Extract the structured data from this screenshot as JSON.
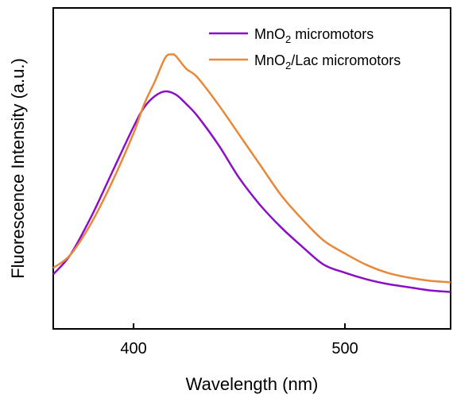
{
  "chart_data": {
    "type": "line",
    "xlabel": "Wavelength (nm)",
    "ylabel": "Fluorescence Intensity (a.u.)",
    "xlim": [
      362,
      550
    ],
    "ylim": [
      0,
      1
    ],
    "x_ticks": [
      400,
      500
    ],
    "y_ticks": [],
    "grid": false,
    "legend_position": "top-right",
    "series": [
      {
        "name": "MnO2 micromotors",
        "name_main": "MnO",
        "name_sub": "2",
        "name_rest": " micromotors",
        "color": "#8B0FC7",
        "x": [
          362,
          370,
          380,
          390,
          400,
          405,
          410,
          415,
          420,
          425,
          430,
          440,
          450,
          460,
          470,
          480,
          490,
          500,
          510,
          520,
          530,
          540,
          550
        ],
        "y": [
          0.17,
          0.23,
          0.35,
          0.49,
          0.63,
          0.69,
          0.725,
          0.74,
          0.73,
          0.7,
          0.665,
          0.575,
          0.47,
          0.385,
          0.315,
          0.255,
          0.2,
          0.175,
          0.155,
          0.14,
          0.13,
          0.12,
          0.115
        ]
      },
      {
        "name": "MnO2/Lac micromotors",
        "name_main": "MnO",
        "name_sub": "2",
        "name_rest": "/Lac micromotors",
        "color": "#E8893A",
        "x": [
          362,
          370,
          380,
          390,
          400,
          405,
          410,
          415,
          418,
          420,
          425,
          430,
          440,
          450,
          460,
          470,
          480,
          490,
          500,
          510,
          520,
          530,
          540,
          550
        ],
        "y": [
          0.19,
          0.23,
          0.33,
          0.46,
          0.61,
          0.7,
          0.77,
          0.845,
          0.855,
          0.85,
          0.81,
          0.785,
          0.7,
          0.605,
          0.51,
          0.415,
          0.34,
          0.275,
          0.235,
          0.2,
          0.175,
          0.16,
          0.15,
          0.145
        ]
      }
    ]
  }
}
